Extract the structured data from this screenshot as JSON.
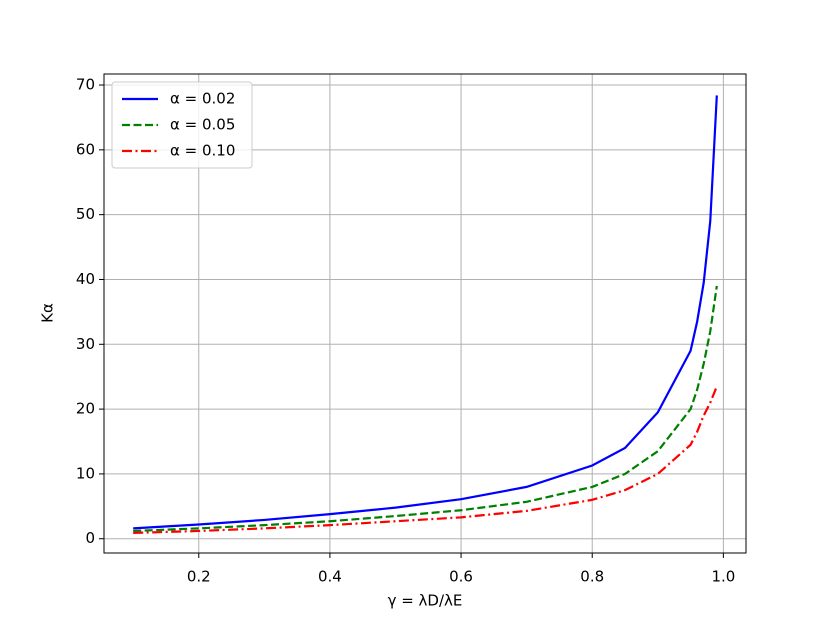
{
  "chart_data": {
    "type": "line",
    "x_label": "γ = λD/λE",
    "y_label": "Kα",
    "x": [
      0.1,
      0.2,
      0.3,
      0.4,
      0.5,
      0.6,
      0.7,
      0.8,
      0.85,
      0.9,
      0.95,
      0.96,
      0.97,
      0.98,
      0.99
    ],
    "series": [
      {
        "name": "α = 0.02",
        "color": "#0000ff",
        "linestyle": "solid",
        "values": [
          1.6,
          2.2,
          2.9,
          3.8,
          4.8,
          6.1,
          8.0,
          11.3,
          14,
          19.5,
          29,
          33.5,
          39.5,
          49,
          68.4
        ]
      },
      {
        "name": "α = 0.05",
        "color": "#008000",
        "linestyle": "dashed",
        "values": [
          1.2,
          1.6,
          2.1,
          2.7,
          3.5,
          4.4,
          5.7,
          8.0,
          10,
          13.5,
          20,
          23,
          27,
          32,
          39
        ]
      },
      {
        "name": "α = 0.10",
        "color": "#ff0000",
        "linestyle": "dashdot",
        "values": [
          0.9,
          1.2,
          1.6,
          2.1,
          2.7,
          3.3,
          4.3,
          6.0,
          7.5,
          10,
          14.5,
          16.5,
          19,
          21,
          23.5
        ]
      }
    ],
    "xlim": [
      0.0555,
      1.0345
    ],
    "ylim": [
      -2.2,
      71.7
    ],
    "xticks": [
      0.2,
      0.4,
      0.6,
      0.8,
      {
        "value": 1,
        "label": "1.0"
      }
    ],
    "yticks": [
      0,
      10,
      20,
      30,
      40,
      50,
      60,
      70
    ],
    "grid": true,
    "legend": "upper left"
  }
}
